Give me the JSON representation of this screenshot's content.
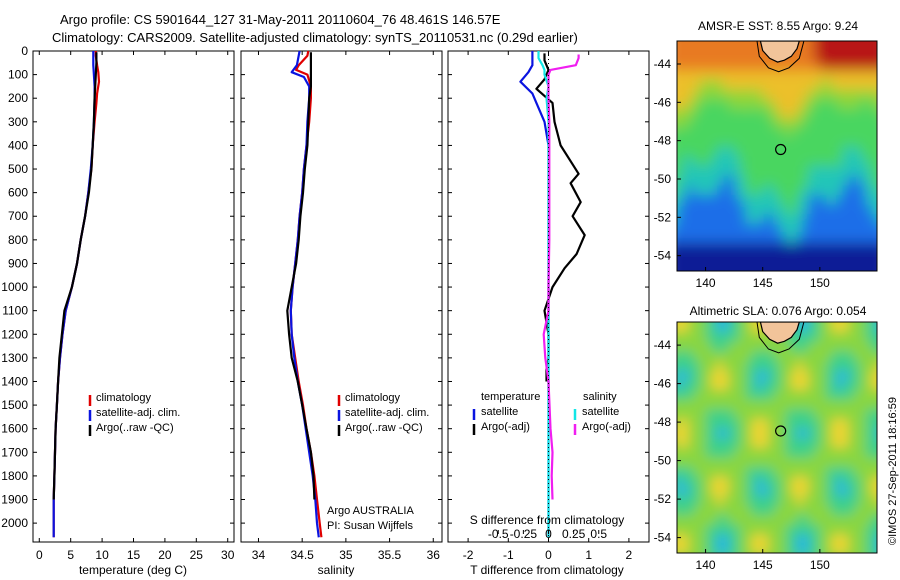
{
  "header": {
    "line1": "Argo profile: CS 5901644_127 31-May-2011 20110604_76 48.461S 146.57E",
    "line2": "Climatology: CARS2009. Satellite-adjusted climatology: synTS_20110531.nc (0.29d earlier)"
  },
  "colors": {
    "climatology": "#e00000",
    "satellite": "#0a14e0",
    "argo": "#000000",
    "sal_satellite": "#12e6e6",
    "sal_argo": "#f01ef0"
  },
  "chart_data": [
    {
      "type": "line",
      "id": "temperature",
      "xlabel": "temperature (deg C)",
      "ylabel": "",
      "xlim": [
        -1,
        31
      ],
      "ylim": [
        2080,
        0
      ],
      "xticks": [
        0,
        5,
        10,
        15,
        20,
        25,
        30
      ],
      "yticks": [
        0,
        100,
        200,
        300,
        400,
        500,
        600,
        700,
        800,
        900,
        1000,
        1100,
        1200,
        1300,
        1400,
        1500,
        1600,
        1700,
        1800,
        1900,
        2000
      ],
      "legend": {
        "placement": "lower-center",
        "entries": [
          "climatology",
          "satellite-adj. clim.",
          "Argo(..raw -QC)"
        ]
      },
      "series": [
        {
          "name": "climatology",
          "color_key": "climatology",
          "points": [
            [
              9.0,
              0
            ],
            [
              9.0,
              20
            ],
            [
              9.2,
              60
            ],
            [
              9.4,
              90
            ],
            [
              9.5,
              130
            ],
            [
              9.2,
              180
            ],
            [
              9.1,
              220
            ],
            [
              8.8,
              300
            ],
            [
              8.5,
              400
            ],
            [
              8.3,
              500
            ],
            [
              7.8,
              600
            ],
            [
              7.3,
              700
            ],
            [
              6.6,
              800
            ],
            [
              6.0,
              900
            ],
            [
              5.2,
              1000
            ],
            [
              4.2,
              1100
            ],
            [
              3.7,
              1200
            ],
            [
              3.3,
              1300
            ],
            [
              3.0,
              1400
            ],
            [
              2.8,
              1500
            ],
            [
              2.6,
              1600
            ],
            [
              2.5,
              1700
            ],
            [
              2.4,
              1800
            ],
            [
              2.3,
              1900
            ],
            [
              2.3,
              2000
            ],
            [
              2.3,
              2060
            ]
          ]
        },
        {
          "name": "satellite-adj. clim.",
          "color_key": "satellite",
          "points": [
            [
              8.6,
              0
            ],
            [
              8.6,
              20
            ],
            [
              8.6,
              60
            ],
            [
              8.7,
              100
            ],
            [
              8.8,
              150
            ],
            [
              8.8,
              200
            ],
            [
              8.7,
              300
            ],
            [
              8.5,
              400
            ],
            [
              8.2,
              500
            ],
            [
              7.8,
              600
            ],
            [
              7.3,
              700
            ],
            [
              6.6,
              800
            ],
            [
              6.0,
              900
            ],
            [
              5.2,
              1000
            ],
            [
              4.2,
              1100
            ],
            [
              3.7,
              1200
            ],
            [
              3.3,
              1300
            ],
            [
              3.0,
              1400
            ],
            [
              2.8,
              1500
            ],
            [
              2.6,
              1600
            ],
            [
              2.5,
              1700
            ],
            [
              2.4,
              1800
            ],
            [
              2.3,
              1900
            ],
            [
              2.3,
              2000
            ],
            [
              2.3,
              2060
            ]
          ]
        },
        {
          "name": "Argo(..raw -QC)",
          "color_key": "argo",
          "points": [
            [
              9.1,
              5
            ],
            [
              9.1,
              50
            ],
            [
              9.0,
              100
            ],
            [
              8.9,
              150
            ],
            [
              8.8,
              200
            ],
            [
              8.7,
              300
            ],
            [
              8.5,
              400
            ],
            [
              8.3,
              500
            ],
            [
              7.9,
              600
            ],
            [
              7.3,
              700
            ],
            [
              6.6,
              800
            ],
            [
              6.0,
              900
            ],
            [
              5.2,
              1000
            ],
            [
              4.0,
              1100
            ],
            [
              3.6,
              1200
            ],
            [
              3.2,
              1300
            ],
            [
              3.0,
              1400
            ],
            [
              2.8,
              1500
            ],
            [
              2.6,
              1600
            ],
            [
              2.5,
              1700
            ],
            [
              2.4,
              1800
            ],
            [
              2.3,
              1900
            ]
          ]
        }
      ]
    },
    {
      "type": "line",
      "id": "salinity",
      "xlabel": "salinity",
      "ylabel": "",
      "xlim": [
        33.8,
        36.1
      ],
      "ylim": [
        2080,
        0
      ],
      "xticks": [
        34,
        34.5,
        35,
        35.5,
        36
      ],
      "legend": {
        "placement": "lower-right",
        "entries": [
          "climatology",
          "satellite-adj. clim.",
          "Argo(..raw -QC)"
        ]
      },
      "annotation": [
        "Argo AUSTRALIA",
        "PI: Susan Wijffels"
      ],
      "series": [
        {
          "name": "climatology",
          "color_key": "climatology",
          "points": [
            [
              34.57,
              0
            ],
            [
              34.56,
              20
            ],
            [
              34.46,
              60
            ],
            [
              34.43,
              80
            ],
            [
              34.56,
              100
            ],
            [
              34.6,
              150
            ],
            [
              34.6,
              200
            ],
            [
              34.58,
              300
            ],
            [
              34.55,
              400
            ],
            [
              34.52,
              500
            ],
            [
              34.5,
              600
            ],
            [
              34.47,
              700
            ],
            [
              34.45,
              800
            ],
            [
              34.42,
              900
            ],
            [
              34.39,
              1000
            ],
            [
              34.37,
              1100
            ],
            [
              34.38,
              1200
            ],
            [
              34.42,
              1300
            ],
            [
              34.46,
              1400
            ],
            [
              34.51,
              1500
            ],
            [
              34.55,
              1600
            ],
            [
              34.6,
              1700
            ],
            [
              34.64,
              1800
            ],
            [
              34.67,
              1900
            ],
            [
              34.7,
              2000
            ],
            [
              34.72,
              2060
            ]
          ]
        },
        {
          "name": "satellite-adj. clim.",
          "color_key": "satellite",
          "points": [
            [
              34.47,
              0
            ],
            [
              34.46,
              20
            ],
            [
              34.44,
              60
            ],
            [
              34.38,
              90
            ],
            [
              34.52,
              110
            ],
            [
              34.58,
              150
            ],
            [
              34.58,
              200
            ],
            [
              34.56,
              300
            ],
            [
              34.55,
              400
            ],
            [
              34.52,
              500
            ],
            [
              34.5,
              600
            ],
            [
              34.47,
              700
            ],
            [
              34.45,
              800
            ],
            [
              34.42,
              900
            ],
            [
              34.39,
              1000
            ],
            [
              34.37,
              1100
            ],
            [
              34.38,
              1200
            ],
            [
              34.41,
              1300
            ],
            [
              34.45,
              1400
            ],
            [
              34.5,
              1500
            ],
            [
              34.54,
              1600
            ],
            [
              34.58,
              1700
            ],
            [
              34.62,
              1800
            ],
            [
              34.65,
              1900
            ],
            [
              34.67,
              2000
            ],
            [
              34.69,
              2060
            ]
          ]
        },
        {
          "name": "Argo(..raw -QC)",
          "color_key": "argo",
          "points": [
            [
              34.6,
              5
            ],
            [
              34.6,
              50
            ],
            [
              34.6,
              100
            ],
            [
              34.6,
              150
            ],
            [
              34.58,
              200
            ],
            [
              34.57,
              300
            ],
            [
              34.56,
              400
            ],
            [
              34.53,
              500
            ],
            [
              34.51,
              600
            ],
            [
              34.48,
              700
            ],
            [
              34.46,
              800
            ],
            [
              34.43,
              900
            ],
            [
              34.38,
              1000
            ],
            [
              34.33,
              1100
            ],
            [
              34.35,
              1200
            ],
            [
              34.38,
              1300
            ],
            [
              34.45,
              1400
            ],
            [
              34.5,
              1500
            ],
            [
              34.55,
              1600
            ],
            [
              34.6,
              1700
            ],
            [
              34.63,
              1800
            ],
            [
              34.64,
              1900
            ]
          ]
        }
      ]
    },
    {
      "type": "line",
      "id": "difference",
      "xlabel": "T difference from climatology",
      "xlabel_top": "S difference from climatology",
      "xlim": [
        -2.5,
        2.5
      ],
      "ylim": [
        2080,
        0
      ],
      "xticks": [
        -2,
        -1,
        0,
        1,
        2
      ],
      "xtick_labels": [
        "-2",
        "-1",
        "0",
        "1",
        "2"
      ],
      "sticks": [
        -1.25,
        -0.625,
        0,
        0.625,
        1.25
      ],
      "stick_labels": [
        "-0.5",
        "-0.25",
        "0",
        "0.25",
        "0.5"
      ],
      "legend": {
        "placement": "lower-center",
        "temperature_title": "temperature",
        "salinity_title": "salinity",
        "entries": [
          "satellite",
          "Argo(-adj)",
          "satellite",
          "Argo(-adj)"
        ]
      },
      "series": [
        {
          "name": "temperature satellite",
          "color_key": "satellite",
          "points": [
            [
              -0.4,
              0
            ],
            [
              -0.4,
              20
            ],
            [
              -0.4,
              60
            ],
            [
              -0.5,
              90
            ],
            [
              -0.7,
              130
            ],
            [
              -0.4,
              180
            ],
            [
              -0.3,
              220
            ],
            [
              -0.1,
              300
            ],
            [
              0,
              400
            ],
            [
              0,
              600
            ],
            [
              0,
              1000
            ],
            [
              0,
              1400
            ],
            [
              0,
              1800
            ],
            [
              0,
              2060
            ]
          ]
        },
        {
          "name": "temperature Argo(-adj)",
          "color_key": "argo",
          "points": [
            [
              -0.1,
              10
            ],
            [
              -0.1,
              40
            ],
            [
              0,
              80
            ],
            [
              -0.1,
              120
            ],
            [
              -0.3,
              160
            ],
            [
              0.1,
              220
            ],
            [
              0.15,
              300
            ],
            [
              0.3,
              400
            ],
            [
              0.6,
              480
            ],
            [
              0.75,
              520
            ],
            [
              0.55,
              560
            ],
            [
              0.8,
              640
            ],
            [
              0.6,
              700
            ],
            [
              0.9,
              780
            ],
            [
              0.7,
              860
            ],
            [
              0.4,
              920
            ],
            [
              0.1,
              1000
            ],
            [
              -0.1,
              1100
            ],
            [
              0,
              1200
            ],
            [
              0,
              1300
            ],
            [
              -0.05,
              1350
            ],
            [
              -0.05,
              1400
            ]
          ]
        },
        {
          "name": "salinity satellite",
          "color_key": "sal_satellite",
          "points": [
            [
              -0.25,
              0
            ],
            [
              -0.25,
              30
            ],
            [
              -0.15,
              60
            ],
            [
              -0.1,
              80
            ],
            [
              -0.1,
              100
            ],
            [
              0,
              150
            ],
            [
              -0.05,
              200
            ],
            [
              0,
              300
            ],
            [
              0,
              400
            ],
            [
              0,
              600
            ],
            [
              0,
              1000
            ],
            [
              0,
              1400
            ],
            [
              0,
              1800
            ],
            [
              0,
              2060
            ]
          ]
        },
        {
          "name": "salinity Argo(-adj)",
          "color_key": "sal_argo",
          "points": [
            [
              0.75,
              15
            ],
            [
              0.75,
              30
            ],
            [
              0.68,
              60
            ],
            [
              0.05,
              80
            ],
            [
              0,
              100
            ],
            [
              0,
              200
            ],
            [
              0.02,
              300
            ],
            [
              0.02,
              400
            ],
            [
              0.02,
              600
            ],
            [
              0.02,
              800
            ],
            [
              0,
              1000
            ],
            [
              0,
              1100
            ],
            [
              -0.12,
              1200
            ],
            [
              -0.08,
              1300
            ],
            [
              0,
              1400
            ],
            [
              0.05,
              1600
            ],
            [
              0.1,
              1700
            ],
            [
              0.08,
              1800
            ],
            [
              0.1,
              1900
            ]
          ]
        }
      ]
    },
    {
      "type": "heatmap",
      "id": "sst",
      "title": "AMSR-E SST: 8.55 Argo: 9.24",
      "xlim": [
        137.5,
        155
      ],
      "ylim": [
        -54.8,
        -42.8
      ],
      "xticks": [
        140,
        145,
        150
      ],
      "yticks": [
        -44,
        -46,
        -48,
        -50,
        -52,
        -54
      ],
      "marker": {
        "lon": 146.57,
        "lat": -48.461
      }
    },
    {
      "type": "heatmap",
      "id": "sla",
      "title": "Altimetric SLA: 0.076 Argo: 0.054",
      "xlim": [
        137.5,
        155
      ],
      "ylim": [
        -54.8,
        -42.8
      ],
      "xticks": [
        140,
        145,
        150
      ],
      "yticks": [
        -44,
        -46,
        -48,
        -50,
        -52,
        -54
      ],
      "marker": {
        "lon": 146.57,
        "lat": -48.461
      }
    }
  ],
  "credit": "©IMOS 27-Sep-2011 18:16:59"
}
